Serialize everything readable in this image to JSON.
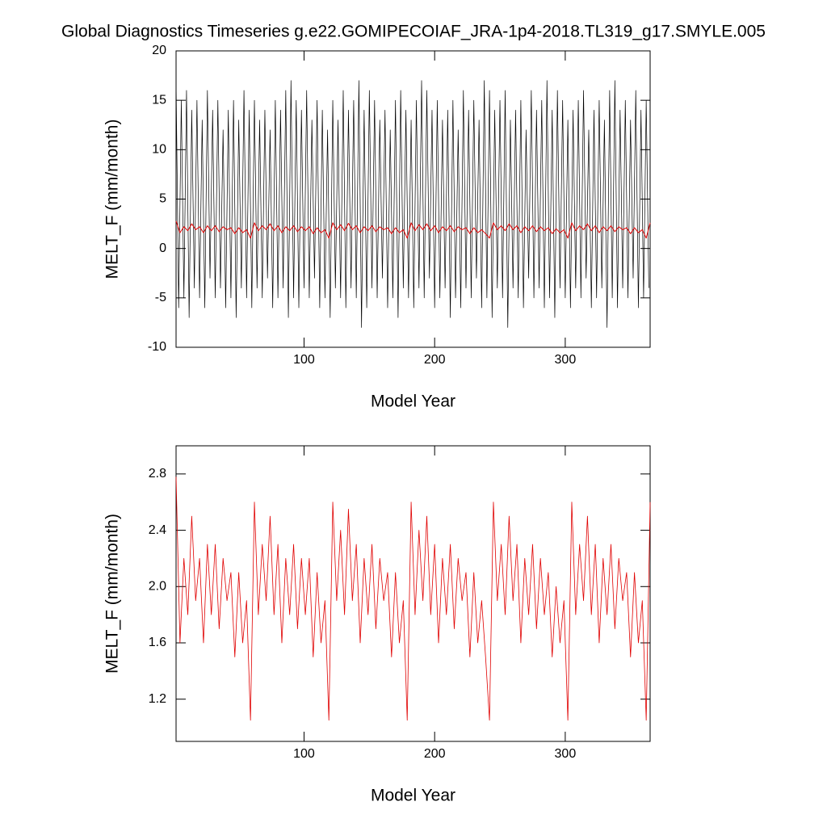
{
  "chart_data": [
    {
      "type": "line",
      "title": "Global Diagnostics Timeseries g.e22.GOMIPECOIAF_JRA-1p4-2018.TL319_g17.SMYLE.005",
      "xlabel": "Model Year",
      "ylabel": "MELT_F (mm/month)",
      "xlim": [
        2,
        365
      ],
      "xticks": [
        100,
        200,
        300
      ],
      "ylim": [
        -10,
        20
      ],
      "yticks": [
        -10,
        -5,
        0,
        5,
        10,
        15,
        20
      ],
      "x": [
        2,
        4,
        6,
        8,
        10,
        12,
        14,
        16,
        18,
        20,
        22,
        24,
        26,
        28,
        30,
        32,
        34,
        36,
        38,
        40,
        42,
        44,
        46,
        48,
        50,
        52,
        54,
        56,
        58,
        60,
        62,
        64,
        66,
        68,
        70,
        72,
        74,
        76,
        78,
        80,
        82,
        84,
        86,
        88,
        90,
        92,
        94,
        96,
        98,
        100,
        102,
        104,
        106,
        108,
        110,
        112,
        114,
        116,
        118,
        120,
        122,
        124,
        126,
        128,
        130,
        132,
        134,
        136,
        138,
        140,
        142,
        144,
        146,
        148,
        150,
        152,
        154,
        156,
        158,
        160,
        162,
        164,
        166,
        168,
        170,
        172,
        174,
        176,
        178,
        180,
        182,
        184,
        186,
        188,
        190,
        192,
        194,
        196,
        198,
        200,
        202,
        204,
        206,
        208,
        210,
        212,
        214,
        216,
        218,
        220,
        222,
        224,
        226,
        228,
        230,
        232,
        234,
        236,
        238,
        240,
        242,
        244,
        246,
        248,
        250,
        252,
        254,
        256,
        258,
        260,
        262,
        264,
        266,
        268,
        270,
        272,
        274,
        276,
        278,
        280,
        282,
        284,
        286,
        288,
        290,
        292,
        294,
        296,
        298,
        300,
        302,
        304,
        306,
        308,
        310,
        312,
        314,
        316,
        318,
        320,
        322,
        324,
        326,
        328,
        330,
        332,
        334,
        336,
        338,
        340,
        342,
        344,
        346,
        348,
        350,
        352,
        354,
        356,
        358,
        360,
        362,
        364
      ],
      "series": [
        {
          "color": "#000000",
          "values": [
            17,
            -6,
            15,
            -5,
            16,
            -7,
            14,
            -4,
            15,
            -5,
            13,
            -6,
            16,
            -3,
            14,
            -5,
            15,
            -4,
            12,
            -6,
            14,
            -5,
            15,
            -7,
            13,
            -4,
            16,
            -5,
            14,
            -6,
            15,
            -4,
            13,
            -5,
            14,
            -3,
            12,
            -6,
            15,
            -5,
            14,
            -4,
            16,
            -7,
            17,
            -5,
            15,
            -6,
            14,
            -4,
            16,
            -5,
            13,
            -3,
            15,
            -6,
            14,
            -5,
            12,
            -7,
            15,
            -4,
            13,
            -5,
            16,
            -6,
            14,
            -4,
            15,
            -5,
            17,
            -8,
            14,
            -6,
            16,
            -4,
            15,
            -5,
            13,
            -3,
            14,
            -6,
            12,
            -5,
            15,
            -7,
            16,
            -4,
            14,
            -5,
            13,
            -6,
            15,
            -4,
            17,
            -5,
            16,
            -3,
            14,
            -6,
            15,
            -5,
            13,
            -4,
            14,
            -7,
            15,
            -5,
            12,
            -6,
            16,
            -4,
            14,
            -5,
            15,
            -3,
            13,
            -6,
            17,
            -5,
            16,
            -7,
            14,
            -4,
            15,
            -5,
            16,
            -8,
            13,
            -4,
            14,
            -5,
            15,
            -6,
            12,
            -3,
            16,
            -5,
            14,
            -4,
            15,
            -6,
            17,
            -5,
            14,
            -7,
            16,
            -4,
            15,
            -5,
            13,
            -6,
            14,
            -4,
            15,
            -5,
            16,
            -3,
            12,
            -6,
            14,
            -5,
            15,
            -4,
            13,
            -8,
            16,
            -5,
            17,
            -6,
            14,
            -4,
            15,
            -5,
            13,
            -3,
            16,
            -6,
            14,
            -5,
            15,
            -4
          ]
        }
      ]
    },
    {
      "type": "line",
      "xlabel": "Model Year",
      "ylabel": "MELT_F (mm/month)",
      "xlim": [
        2,
        365
      ],
      "xticks": [
        100,
        200,
        300
      ],
      "ylim": [
        0.9,
        3.0
      ],
      "yticks": [
        1.2,
        1.6,
        {
          "value": 2,
          "label": "2.0"
        },
        2.4,
        2.8
      ],
      "x": [
        2,
        5,
        8,
        11,
        14,
        17,
        20,
        23,
        26,
        29,
        32,
        35,
        38,
        41,
        44,
        47,
        50,
        53,
        56,
        59,
        62,
        65,
        68,
        71,
        74,
        77,
        80,
        83,
        86,
        89,
        92,
        95,
        98,
        101,
        104,
        107,
        110,
        113,
        116,
        119,
        122,
        125,
        128,
        131,
        134,
        137,
        140,
        143,
        146,
        149,
        152,
        155,
        158,
        161,
        164,
        167,
        170,
        173,
        176,
        179,
        182,
        185,
        188,
        191,
        194,
        197,
        200,
        203,
        206,
        209,
        212,
        215,
        218,
        221,
        224,
        227,
        230,
        233,
        236,
        239,
        242,
        245,
        248,
        251,
        254,
        257,
        260,
        263,
        266,
        269,
        272,
        275,
        278,
        281,
        284,
        287,
        290,
        293,
        296,
        299,
        302,
        305,
        308,
        311,
        314,
        317,
        320,
        323,
        326,
        329,
        332,
        335,
        338,
        341,
        344,
        347,
        350,
        353,
        356,
        359,
        362,
        365
      ],
      "series": [
        {
          "color": "#e00000",
          "values": [
            2.78,
            1.6,
            2.2,
            1.8,
            2.5,
            1.9,
            2.2,
            1.6,
            2.3,
            1.8,
            2.3,
            1.7,
            2.2,
            1.9,
            2.1,
            1.5,
            2.1,
            1.6,
            1.9,
            1.05,
            2.6,
            1.8,
            2.3,
            1.9,
            2.5,
            1.8,
            2.3,
            1.6,
            2.2,
            1.8,
            2.3,
            1.7,
            2.2,
            1.8,
            2.2,
            1.5,
            2.1,
            1.6,
            1.9,
            1.05,
            2.6,
            1.9,
            2.4,
            1.8,
            2.55,
            1.9,
            2.3,
            1.6,
            2.2,
            1.8,
            2.3,
            1.7,
            2.2,
            1.9,
            2.1,
            1.5,
            2.1,
            1.6,
            1.9,
            1.05,
            2.6,
            1.8,
            2.4,
            1.9,
            2.5,
            1.8,
            2.3,
            1.6,
            2.2,
            1.8,
            2.3,
            1.7,
            2.2,
            1.9,
            2.1,
            1.5,
            2.1,
            1.6,
            1.9,
            1.5,
            1.05,
            2.6,
            1.9,
            2.3,
            1.8,
            2.5,
            1.9,
            2.3,
            1.6,
            2.2,
            1.8,
            2.3,
            1.7,
            2.2,
            1.8,
            2.1,
            1.5,
            2.0,
            1.6,
            1.9,
            1.05,
            2.6,
            1.8,
            2.3,
            1.9,
            2.5,
            1.8,
            2.3,
            1.6,
            2.2,
            1.8,
            2.3,
            1.7,
            2.2,
            1.9,
            2.1,
            1.5,
            2.1,
            1.6,
            1.9,
            1.05,
            2.6
          ]
        }
      ]
    }
  ]
}
